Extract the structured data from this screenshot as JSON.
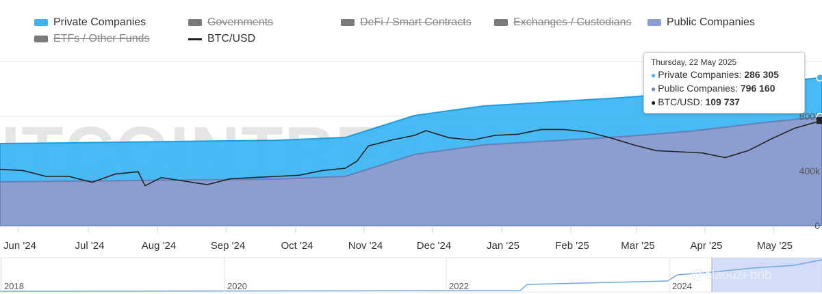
{
  "legend": [
    {
      "label": "Private Companies",
      "color": "#3fb6f2",
      "type": "area",
      "enabled": true
    },
    {
      "label": "Governments",
      "color": "#7a7a7a",
      "type": "area",
      "enabled": false
    },
    {
      "label": "DeFi / Smart Contracts",
      "color": "#7a7a7a",
      "type": "area",
      "enabled": false
    },
    {
      "label": "Exchanges / Custodians",
      "color": "#7a7a7a",
      "type": "area",
      "enabled": false
    },
    {
      "label": "Public Companies",
      "color": "#8c9ecf",
      "type": "area",
      "enabled": true
    },
    {
      "label": "ETFs / Other Funds",
      "color": "#7a7a7a",
      "type": "area",
      "enabled": false
    },
    {
      "label": "BTC/USD",
      "color": "#222222",
      "type": "line",
      "enabled": true
    }
  ],
  "watermark": "BITCOINTREASURIES.NET",
  "watermark2": "@elaouzi-bnb",
  "tooltip": {
    "date": "Thursday, 22 May 2025",
    "rows": [
      {
        "label": "Private Companies:",
        "value": "286 305",
        "color": "#3fb6f2"
      },
      {
        "label": "Public Companies:",
        "value": "796 160",
        "color": "#6f82b8"
      },
      {
        "label": "BTC/USD:",
        "value": "109 737",
        "color": "#222222"
      }
    ]
  },
  "navigator": {
    "years": [
      "2018",
      "2020",
      "2022",
      "2024"
    ]
  },
  "chart_data": {
    "type": "area",
    "x_labels": [
      "Jun '24",
      "Jul '24",
      "Aug '24",
      "Sep '24",
      "Oct '24",
      "Nov '24",
      "Dec '24",
      "Jan '25",
      "Feb '25",
      "Mar '25",
      "Apr '25",
      "May '25"
    ],
    "y_ticks": [
      "0",
      "400k",
      "800k"
    ],
    "ylim": [
      0,
      1200000
    ],
    "stacked": true,
    "series": [
      {
        "name": "Public Companies",
        "color": "#8c9ecf",
        "x": [
          0,
          30,
          60,
          90,
          120,
          150,
          180,
          210,
          240,
          270,
          300,
          330,
          357
        ],
        "values": [
          320000,
          325000,
          330000,
          335000,
          340000,
          360000,
          520000,
          590000,
          620000,
          650000,
          690000,
          750000,
          796160
        ]
      },
      {
        "name": "Private Companies",
        "color": "#3fb6f2",
        "x": [
          0,
          30,
          60,
          90,
          120,
          150,
          180,
          210,
          240,
          270,
          300,
          330,
          357
        ],
        "values": [
          280000,
          280000,
          282000,
          283000,
          284000,
          285000,
          285000,
          285000,
          285500,
          285500,
          286000,
          286000,
          286305
        ]
      },
      {
        "name": "BTC/USD",
        "color": "#222222",
        "x": [
          0,
          10,
          20,
          30,
          40,
          50,
          60,
          63,
          70,
          80,
          90,
          100,
          110,
          120,
          130,
          140,
          150,
          155,
          160,
          170,
          180,
          185,
          195,
          205,
          215,
          225,
          235,
          245,
          255,
          265,
          275,
          285,
          295,
          305,
          315,
          325,
          335,
          345,
          357
        ],
        "values": [
          68000,
          67000,
          62000,
          62000,
          57000,
          64000,
          66000,
          54000,
          61000,
          58000,
          55000,
          60000,
          61000,
          62000,
          63000,
          67000,
          69000,
          75000,
          88000,
          93000,
          97000,
          101000,
          95000,
          93000,
          97000,
          98000,
          102000,
          102000,
          100000,
          95000,
          89000,
          84000,
          83000,
          82000,
          78000,
          84000,
          94000,
          103000,
          109737
        ]
      }
    ]
  }
}
